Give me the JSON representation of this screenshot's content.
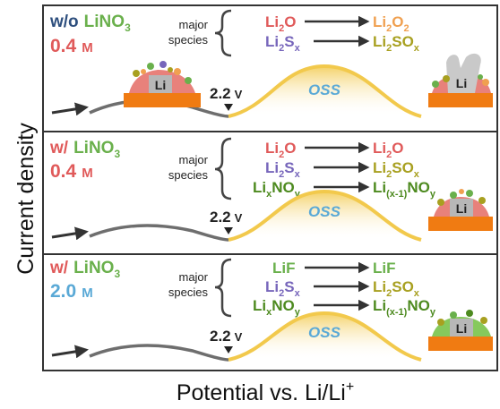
{
  "axes": {
    "ylabel": "Current density",
    "xlabel_main": "Potential vs. Li/Li",
    "xlabel_sup": "+"
  },
  "colors": {
    "dark_blue": "#2e4f7e",
    "green": "#6ab04c",
    "red": "#e05a5a",
    "cyan": "#5aa9d6",
    "orange": "#f0a050",
    "purple": "#7766bb",
    "olive": "#a8a020",
    "darkgreen": "#4d8a1f",
    "oss_yellow": "#f2c94c",
    "gray_curve": "#6e6e6e",
    "electrode_orange": "#f07b12"
  },
  "common": {
    "voltage_num": "2.2",
    "voltage_unit": "V",
    "oss": "OSS",
    "species_label_1": "major",
    "species_label_2": "species",
    "li": "Li"
  },
  "panels": [
    {
      "cond_prefix": "w/o",
      "cond_salt": "LiNO",
      "cond_salt_sub": "3",
      "conc_num": "0.4",
      "conc_unit": "M",
      "rows": [
        {
          "from": "Li",
          "from_sub": "2",
          "from_tail": "O",
          "from_tail_sub": "",
          "from_color": "red",
          "to": "Li",
          "to_sub": "2",
          "to_tail": "O",
          "to_tail_sub": "2",
          "to_color": "orange"
        },
        {
          "from": "Li",
          "from_sub": "2",
          "from_tail": "S",
          "from_tail_sub": "x",
          "from_color": "purple",
          "to": "Li",
          "to_sub": "2",
          "to_tail": "SO",
          "to_tail_sub": "x",
          "to_color": "olive"
        }
      ]
    },
    {
      "cond_prefix": "w/",
      "cond_salt": "LiNO",
      "cond_salt_sub": "3",
      "conc_num": "0.4",
      "conc_unit": "M",
      "rows": [
        {
          "from": "Li",
          "from_sub": "2",
          "from_tail": "O",
          "from_tail_sub": "",
          "from_color": "red",
          "to": "Li",
          "to_sub": "2",
          "to_tail": "O",
          "to_tail_sub": "",
          "to_color": "red"
        },
        {
          "from": "Li",
          "from_sub": "2",
          "from_tail": "S",
          "from_tail_sub": "x",
          "from_color": "purple",
          "to": "Li",
          "to_sub": "2",
          "to_tail": "SO",
          "to_tail_sub": "x",
          "to_color": "olive"
        },
        {
          "from": "Li",
          "from_sub": "x",
          "from_tail": "NO",
          "from_tail_sub": "y",
          "from_color": "darkgreen",
          "to": "Li",
          "to_sub": "(x-1)",
          "to_tail": "NO",
          "to_tail_sub": "y",
          "to_color": "darkgreen"
        }
      ]
    },
    {
      "cond_prefix": "w/",
      "cond_salt": "LiNO",
      "cond_salt_sub": "3",
      "conc_num": "2.0",
      "conc_unit": "M",
      "rows": [
        {
          "from": "LiF",
          "from_sub": "",
          "from_tail": "",
          "from_tail_sub": "",
          "from_color": "green",
          "to": "LiF",
          "to_sub": "",
          "to_tail": "",
          "to_tail_sub": "",
          "to_color": "green"
        },
        {
          "from": "Li",
          "from_sub": "2",
          "from_tail": "S",
          "from_tail_sub": "x",
          "from_color": "purple",
          "to": "Li",
          "to_sub": "2",
          "to_tail": "SO",
          "to_tail_sub": "x",
          "to_color": "olive"
        },
        {
          "from": "Li",
          "from_sub": "x",
          "from_tail": "NO",
          "from_tail_sub": "y",
          "from_color": "darkgreen",
          "to": "Li",
          "to_sub": "(x-1)",
          "to_tail": "NO",
          "to_tail_sub": "y",
          "to_color": "darkgreen"
        }
      ]
    }
  ]
}
